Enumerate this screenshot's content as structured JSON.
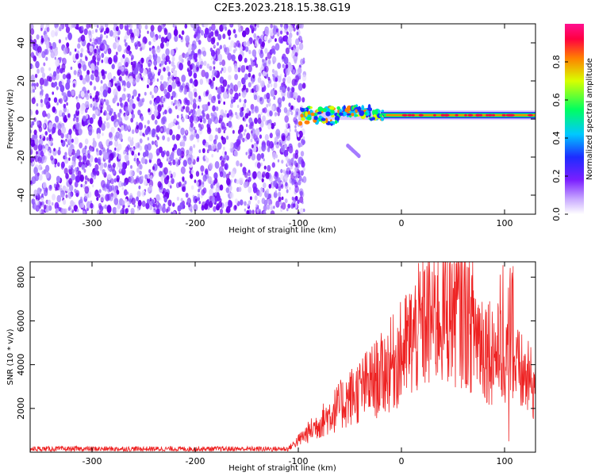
{
  "title": "C2E3.2023.218.15.38.G19",
  "chart_data": [
    {
      "type": "heatmap",
      "xlabel": "Height of straight line (km)",
      "ylabel": "Frequency (Hz)",
      "xlim": [
        -360,
        130
      ],
      "ylim": [
        -50,
        50
      ],
      "x_ticks": [
        -300,
        -200,
        -100,
        0,
        100
      ],
      "y_ticks": [
        -40,
        -20,
        0,
        20,
        40
      ],
      "colorbar": {
        "label": "Normalized spectral amplitude",
        "range": [
          0.0,
          1.0
        ],
        "ticks": [
          0.0,
          0.2,
          0.4,
          0.6,
          0.8
        ],
        "colors": [
          "#ffffff",
          "#7b1fff",
          "#1d2cff",
          "#00c8ff",
          "#00ff60",
          "#d8ff00",
          "#ff8000",
          "#ff0040",
          "#ff1090"
        ]
      },
      "regions": [
        {
          "x_range": [
            -360,
            -100
          ],
          "y_range": [
            -50,
            50
          ],
          "description_value": "broadband noise",
          "amplitude": 0.15
        },
        {
          "x_range": [
            -100,
            130
          ],
          "y_center": 2,
          "band_halfwidth": 2,
          "amplitude": 0.85
        },
        {
          "x_range": [
            -52,
            -40
          ],
          "y_range": [
            -20,
            -14
          ],
          "amplitude": 0.15
        }
      ]
    },
    {
      "type": "line",
      "xlabel": "Height of straight line (km)",
      "ylabel": "SNR (10 * v/v)",
      "xlim": [
        -360,
        130
      ],
      "ylim": [
        0,
        8700
      ],
      "x_ticks": [
        -300,
        -200,
        -100,
        0,
        100
      ],
      "y_ticks": [
        2000,
        4000,
        6000,
        8000
      ],
      "color": "#ee2222",
      "series_envelope": [
        {
          "x": -360,
          "y": 150
        },
        {
          "x": -200,
          "y": 150
        },
        {
          "x": -110,
          "y": 150
        },
        {
          "x": -75,
          "y": 1500
        },
        {
          "x": -50,
          "y": 2500
        },
        {
          "x": -20,
          "y": 3500
        },
        {
          "x": 0,
          "y": 4500
        },
        {
          "x": 20,
          "y": 5800
        },
        {
          "x": 45,
          "y": 6600
        },
        {
          "x": 60,
          "y": 6400
        },
        {
          "x": 80,
          "y": 5000
        },
        {
          "x": 100,
          "y": 4200
        },
        {
          "x": 110,
          "y": 3800
        },
        {
          "x": 130,
          "y": 3000
        }
      ]
    }
  ]
}
